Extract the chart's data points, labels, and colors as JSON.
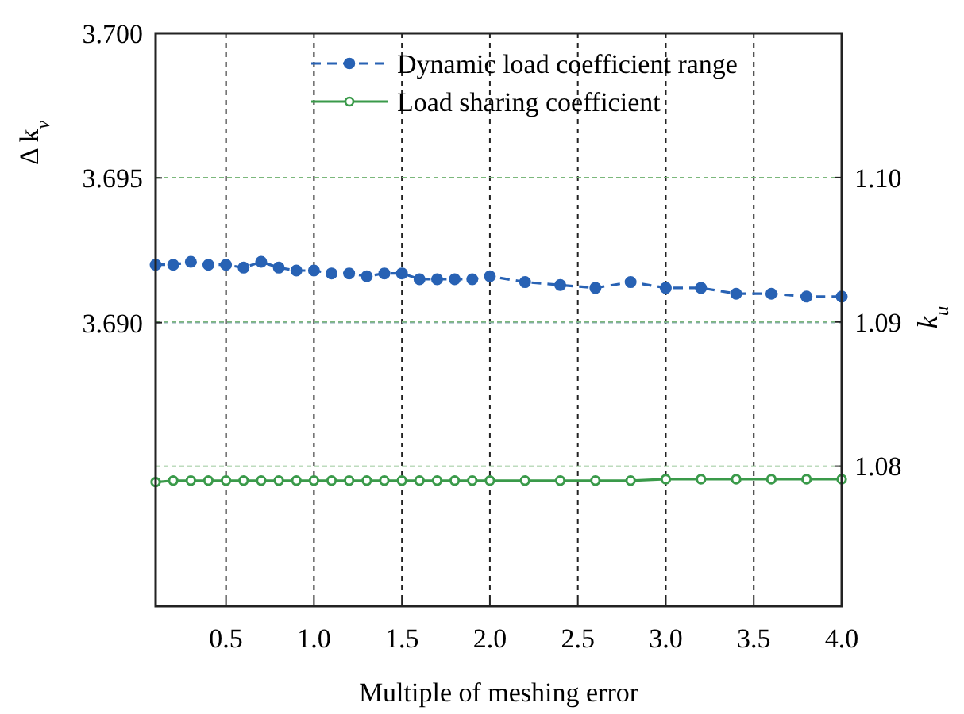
{
  "chart_data": {
    "type": "line",
    "xlabel": "Multiple of meshing error",
    "ylabel": "Δ k$_{v}$",
    "y2label": "k$_{u}$",
    "xlim": [
      0.1,
      4.0
    ],
    "xticks": [
      {
        "value": 0.5,
        "label": "0.5"
      },
      {
        "value": 1.0,
        "label": "1.0"
      },
      {
        "value": 1.5,
        "label": "1.5"
      },
      {
        "value": 2.0,
        "label": "2.0"
      },
      {
        "value": 2.5,
        "label": "2.5"
      },
      {
        "value": 3.0,
        "label": "3.0"
      },
      {
        "value": 3.5,
        "label": "3.5"
      },
      {
        "value": 4.0,
        "label": "4.0"
      }
    ],
    "ylim": [
      3.6802,
      3.7
    ],
    "yticks": [
      {
        "value": 3.69,
        "label": "3.690"
      },
      {
        "value": 3.695,
        "label": "3.695"
      },
      {
        "value": 3.7,
        "label": "3.700"
      }
    ],
    "y2lim": [
      1.0703,
      1.11
    ],
    "y2ticks": [
      {
        "value": 1.08,
        "label": "1.08"
      },
      {
        "value": 1.09,
        "label": "1.09"
      },
      {
        "value": 1.1,
        "label": "1.10"
      }
    ],
    "grid": true,
    "legend": "top right",
    "marker": "circle",
    "x": [
      0.1,
      0.2,
      0.3,
      0.4,
      0.5,
      0.6,
      0.7,
      0.8,
      0.9,
      1.0,
      1.1,
      1.2,
      1.3,
      1.4,
      1.5,
      1.6,
      1.7,
      1.8,
      1.9,
      2.0,
      2.2,
      2.4,
      2.6,
      2.8,
      3.0,
      3.2,
      3.4,
      3.6,
      3.8,
      4.0
    ],
    "series": [
      {
        "name": "Dynamic load coefficient range",
        "color": "#2862b4",
        "line_style": "dashed",
        "values": [
          3.692,
          3.692,
          3.6921,
          3.692,
          3.692,
          3.6919,
          3.6921,
          3.6919,
          3.6918,
          3.6918,
          3.6917,
          3.6917,
          3.6916,
          3.6917,
          3.6917,
          3.6915,
          3.6915,
          3.6915,
          3.6915,
          3.6916,
          3.6914,
          3.6913,
          3.6912,
          3.6914,
          3.6912,
          3.6912,
          3.691,
          3.691,
          3.6909,
          3.6909
        ]
      },
      {
        "name": "Load sharing coefficient",
        "color": "#3a9a4a",
        "line_style": "solid",
        "axis": "y2",
        "values": [
          1.0789,
          1.079,
          1.079,
          1.079,
          1.079,
          1.079,
          1.079,
          1.079,
          1.079,
          1.079,
          1.079,
          1.079,
          1.079,
          1.079,
          1.079,
          1.079,
          1.079,
          1.079,
          1.079,
          1.079,
          1.079,
          1.079,
          1.079,
          1.079,
          1.0791,
          1.0791,
          1.0791,
          1.0791,
          1.0791,
          1.0791
        ]
      }
    ]
  }
}
